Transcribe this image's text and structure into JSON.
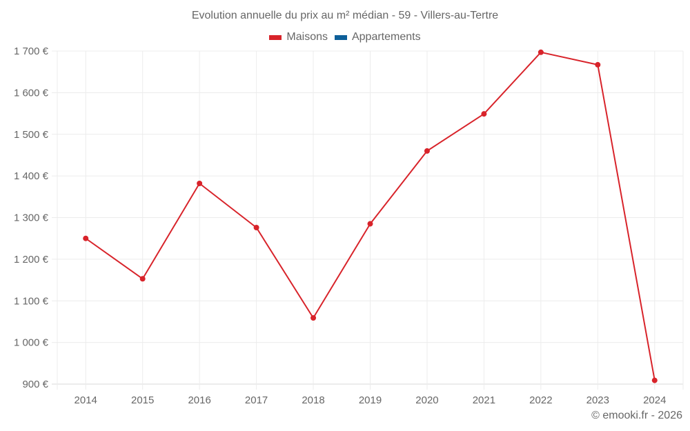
{
  "chart_data": {
    "type": "line",
    "title": "Evolution annuelle du prix au m² médian - 59 - Villers-au-Tertre",
    "xlabel": "",
    "ylabel": "",
    "categories": [
      "2014",
      "2015",
      "2016",
      "2017",
      "2018",
      "2019",
      "2020",
      "2021",
      "2022",
      "2023",
      "2024"
    ],
    "series": [
      {
        "name": "Maisons",
        "color": "#d8232a",
        "values": [
          1250,
          1153,
          1382,
          1276,
          1059,
          1285,
          1460,
          1549,
          1697,
          1667,
          909
        ]
      },
      {
        "name": "Appartements",
        "color": "#0d5f99",
        "values": []
      }
    ],
    "ylim": [
      900,
      1700
    ],
    "yticks": [
      900,
      1000,
      1100,
      1200,
      1300,
      1400,
      1500,
      1600,
      1700
    ],
    "ytick_labels": [
      "900 €",
      "1 000 €",
      "1 100 €",
      "1 200 €",
      "1 300 €",
      "1 400 €",
      "1 500 €",
      "1 600 €",
      "1 700 €"
    ],
    "grid": true,
    "legend_position": "top"
  },
  "legend": {
    "items": [
      {
        "label": "Maisons",
        "color": "#d8232a"
      },
      {
        "label": "Appartements",
        "color": "#0d5f99"
      }
    ]
  },
  "credit": "© emooki.fr - 2026"
}
